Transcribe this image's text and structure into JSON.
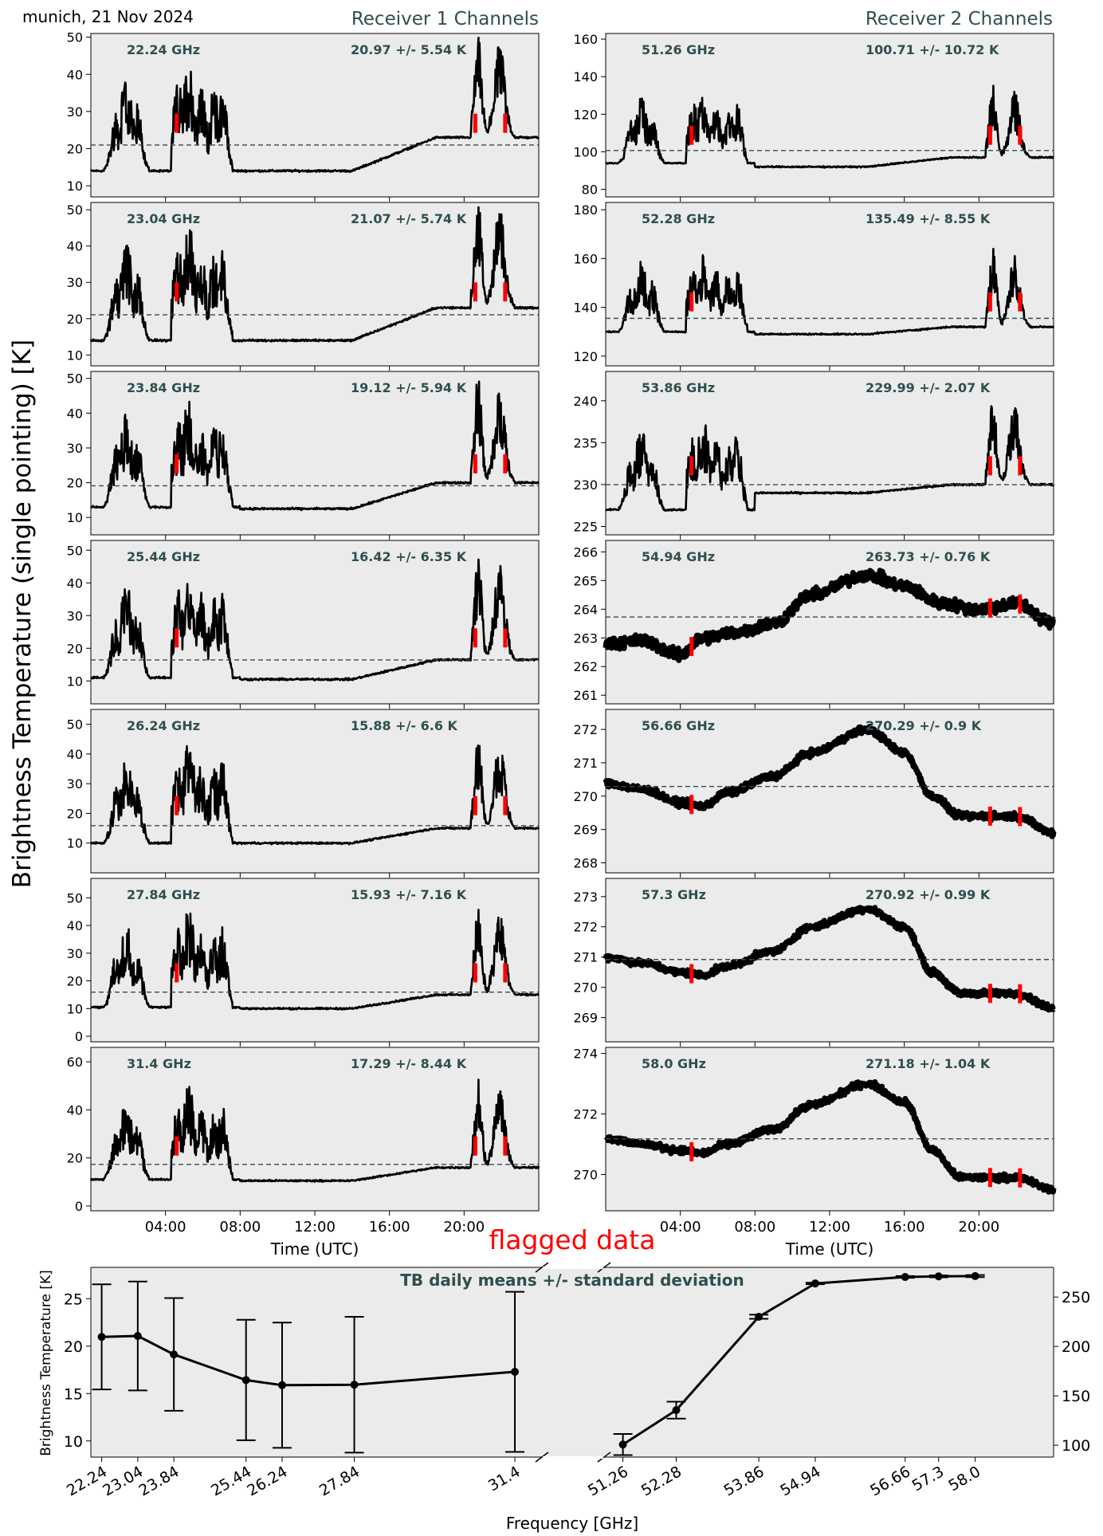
{
  "header": {
    "station_date": "munich, 21 Nov 2024",
    "receiver1_title": "Receiver 1 Channels",
    "receiver2_title": "Receiver 2 Channels",
    "ylabel": "Brightness Temperature (single pointing) [K]",
    "time_xlabel": "Time (UTC)",
    "flag_label": "flagged data"
  },
  "colors": {
    "panel_bg": "#ebebeb",
    "trace": "#000000",
    "flag": "#ff0000",
    "mean_line": "#2f4f4f",
    "label_text": "#2f4f4f",
    "flag_text": "#ff0000"
  },
  "chart_data": [
    {
      "type": "line",
      "group": "receiver1",
      "x_unit": "hours UTC",
      "xlim": [
        0,
        24
      ],
      "xticks": [
        4,
        8,
        12,
        16,
        20
      ],
      "xtick_labels": [
        "04:00",
        "08:00",
        "12:00",
        "16:00",
        "20:00"
      ],
      "flagged_hours": [
        4.6,
        20.6,
        22.2
      ],
      "channels": [
        {
          "freq_label": "22.24 GHz",
          "stats_label": "20.97 +/- 5.54 K",
          "mean": 20.97,
          "std": 5.54,
          "ylim": [
            7,
            51
          ],
          "yticks": [
            10,
            20,
            30,
            40,
            50
          ],
          "base": 14,
          "peak": 27,
          "quiet": 14,
          "late": 23
        },
        {
          "freq_label": "23.04 GHz",
          "stats_label": "21.07 +/- 5.74 K",
          "mean": 21.07,
          "std": 5.74,
          "ylim": [
            7,
            52
          ],
          "yticks": [
            10,
            20,
            30,
            40,
            50
          ],
          "base": 14,
          "peak": 28,
          "quiet": 14,
          "late": 23
        },
        {
          "freq_label": "23.84 GHz",
          "stats_label": "19.12 +/- 5.94 K",
          "mean": 19.12,
          "std": 5.94,
          "ylim": [
            5,
            52
          ],
          "yticks": [
            10,
            20,
            30,
            40,
            50
          ],
          "base": 13,
          "peak": 27,
          "quiet": 12.5,
          "late": 20
        },
        {
          "freq_label": "25.44 GHz",
          "stats_label": "16.42 +/- 6.35 K",
          "mean": 16.42,
          "std": 6.35,
          "ylim": [
            3,
            53
          ],
          "yticks": [
            10,
            20,
            30,
            40,
            50
          ],
          "base": 11,
          "peak": 26,
          "quiet": 10.5,
          "late": 16.5
        },
        {
          "freq_label": "26.24 GHz",
          "stats_label": "15.88 +/- 6.6 K",
          "mean": 15.88,
          "std": 6.6,
          "ylim": [
            0,
            55
          ],
          "yticks": [
            10,
            20,
            30,
            40,
            50
          ],
          "base": 10,
          "peak": 25,
          "quiet": 10,
          "late": 15
        },
        {
          "freq_label": "27.84 GHz",
          "stats_label": "15.93 +/- 7.16 K",
          "mean": 15.93,
          "std": 7.16,
          "ylim": [
            -2,
            57
          ],
          "yticks": [
            0,
            10,
            20,
            30,
            40,
            50
          ],
          "base": 10.5,
          "peak": 26,
          "quiet": 10,
          "late": 15
        },
        {
          "freq_label": "31.4 GHz",
          "stats_label": "17.29 +/- 8.44 K",
          "mean": 17.29,
          "std": 8.44,
          "ylim": [
            -2,
            66
          ],
          "yticks": [
            0,
            20,
            40,
            60
          ],
          "base": 11,
          "peak": 28,
          "quiet": 10.5,
          "late": 16
        }
      ]
    },
    {
      "type": "line",
      "group": "receiver2",
      "x_unit": "hours UTC",
      "xlim": [
        0,
        24
      ],
      "xticks": [
        4,
        8,
        12,
        16,
        20
      ],
      "xtick_labels": [
        "04:00",
        "08:00",
        "12:00",
        "16:00",
        "20:00"
      ],
      "flagged_hours": [
        4.6,
        20.6,
        22.2
      ],
      "channels": [
        {
          "freq_label": "51.26 GHz",
          "stats_label": "100.71 +/- 10.72 K",
          "mean": 100.71,
          "std": 10.72,
          "ylim": [
            76,
            163
          ],
          "yticks": [
            80,
            100,
            120,
            140,
            160
          ],
          "mode": "cloudy",
          "base": 94,
          "peak": 112,
          "quiet": 92,
          "late": 97
        },
        {
          "freq_label": "52.28 GHz",
          "stats_label": "135.49 +/- 8.55 K",
          "mean": 135.49,
          "std": 8.55,
          "ylim": [
            116,
            183
          ],
          "yticks": [
            120,
            140,
            160,
            180
          ],
          "mode": "cloudy",
          "base": 130,
          "peak": 145,
          "quiet": 129,
          "late": 132
        },
        {
          "freq_label": "53.86 GHz",
          "stats_label": "229.99 +/- 2.07 K",
          "mean": 229.99,
          "std": 2.07,
          "ylim": [
            224,
            243.5
          ],
          "yticks": [
            225,
            230,
            235,
            240
          ],
          "mode": "cloudy",
          "base": 227,
          "peak": 232,
          "quiet": 229,
          "late": 230
        },
        {
          "freq_label": "54.94 GHz",
          "stats_label": "263.73 +/- 0.76 K",
          "mean": 263.73,
          "std": 0.76,
          "ylim": [
            260.7,
            266.4
          ],
          "yticks": [
            261,
            262,
            263,
            264,
            265,
            266
          ],
          "mode": "smooth",
          "profile": [
            [
              0,
              262.8
            ],
            [
              2,
              262.9
            ],
            [
              4,
              262.4
            ],
            [
              5.2,
              263.0
            ],
            [
              7,
              263.2
            ],
            [
              9,
              263.5
            ],
            [
              11,
              264.5
            ],
            [
              14,
              265.2
            ],
            [
              16,
              264.8
            ],
            [
              18,
              264.2
            ],
            [
              20,
              264.0
            ],
            [
              22,
              264.2
            ],
            [
              24,
              263.5
            ]
          ],
          "noise": 0.3
        },
        {
          "freq_label": "56.66 GHz",
          "stats_label": "270.29 +/- 0.9 K",
          "mean": 270.29,
          "std": 0.9,
          "ylim": [
            267.7,
            272.6
          ],
          "yticks": [
            268,
            269,
            270,
            271,
            272
          ],
          "mode": "smooth",
          "profile": [
            [
              0,
              270.4
            ],
            [
              2,
              270.2
            ],
            [
              4,
              269.8
            ],
            [
              5.2,
              269.7
            ],
            [
              6.5,
              270.1
            ],
            [
              9,
              270.6
            ],
            [
              11,
              271.3
            ],
            [
              14,
              272.0
            ],
            [
              16,
              271.3
            ],
            [
              17.5,
              270.0
            ],
            [
              19,
              269.4
            ],
            [
              22,
              269.4
            ],
            [
              24,
              268.9
            ]
          ],
          "noise": 0.15
        },
        {
          "freq_label": "57.3 GHz",
          "stats_label": "270.92 +/- 0.99 K",
          "mean": 270.92,
          "std": 0.99,
          "ylim": [
            268.2,
            273.6
          ],
          "yticks": [
            269,
            270,
            271,
            272,
            273
          ],
          "mode": "smooth",
          "profile": [
            [
              0,
              271.0
            ],
            [
              2,
              270.8
            ],
            [
              4,
              270.5
            ],
            [
              5.2,
              270.4
            ],
            [
              6.5,
              270.7
            ],
            [
              9,
              271.2
            ],
            [
              11,
              272.0
            ],
            [
              14,
              272.6
            ],
            [
              16,
              272.0
            ],
            [
              17.5,
              270.5
            ],
            [
              19,
              269.8
            ],
            [
              22,
              269.8
            ],
            [
              24,
              269.3
            ]
          ],
          "noise": 0.15
        },
        {
          "freq_label": "58.0 GHz",
          "stats_label": "271.18 +/- 1.04 K",
          "mean": 271.18,
          "std": 1.04,
          "ylim": [
            268.8,
            274.2
          ],
          "yticks": [
            270,
            272,
            274
          ],
          "mode": "smooth",
          "profile": [
            [
              0,
              271.2
            ],
            [
              2,
              271.0
            ],
            [
              4,
              270.8
            ],
            [
              5.2,
              270.7
            ],
            [
              6.5,
              271.0
            ],
            [
              9,
              271.5
            ],
            [
              11,
              272.3
            ],
            [
              14,
              273.0
            ],
            [
              16,
              272.4
            ],
            [
              17.5,
              270.8
            ],
            [
              19,
              269.9
            ],
            [
              22,
              269.9
            ],
            [
              24,
              269.5
            ]
          ],
          "noise": 0.15
        }
      ]
    },
    {
      "type": "line",
      "group": "daily_means",
      "title": "TB daily means +/- standard deviation",
      "xlabel": "Frequency [GHz]",
      "ylabel_left": "Brightness Temperature [K]",
      "left": {
        "x": [
          22.24,
          23.04,
          23.84,
          25.44,
          26.24,
          27.84,
          31.4
        ],
        "x_labels": [
          "22.24",
          "23.04",
          "23.84",
          "25.44",
          "26.24",
          "27.84",
          "31.4"
        ],
        "mean": [
          20.97,
          21.07,
          19.12,
          16.42,
          15.88,
          15.93,
          17.29
        ],
        "std": [
          5.54,
          5.74,
          5.94,
          6.35,
          6.6,
          7.16,
          8.44
        ],
        "xlim": [
          22.0,
          32.0
        ],
        "ylim": [
          8.3,
          28.3
        ],
        "yticks": [
          10,
          15,
          20,
          25
        ]
      },
      "right": {
        "x": [
          51.26,
          52.28,
          53.86,
          54.94,
          56.66,
          57.3,
          58.0
        ],
        "x_labels": [
          "51.26",
          "52.28",
          "53.86",
          "54.94",
          "56.66",
          "57.3",
          "58.0"
        ],
        "mean": [
          100.71,
          135.49,
          229.99,
          263.73,
          270.29,
          270.92,
          271.18
        ],
        "std": [
          10.72,
          8.55,
          2.07,
          0.76,
          0.9,
          0.99,
          1.04
        ],
        "xlim": [
          50.9,
          59.5
        ],
        "ylim": [
          88,
          280
        ],
        "yticks": [
          100,
          150,
          200,
          250
        ]
      }
    }
  ]
}
